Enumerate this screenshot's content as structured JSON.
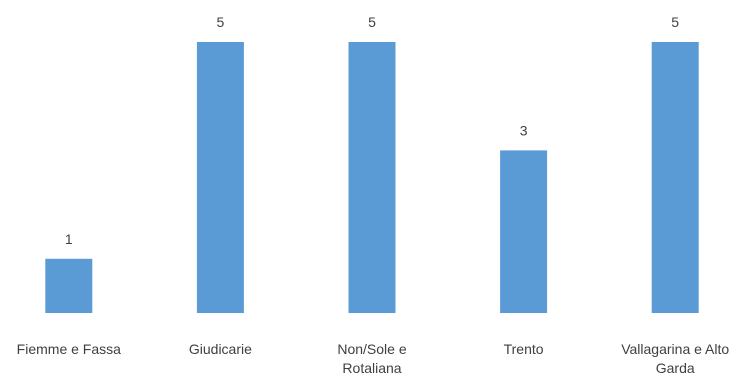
{
  "chart_data": {
    "type": "bar",
    "title": "",
    "xlabel": "",
    "ylabel": "",
    "categories": [
      "Fiemme e Fassa",
      "Giudicarie",
      "Non/Sole e Rotaliana",
      "Trento",
      "Vallagarina e Alto Garda"
    ],
    "values": [
      1,
      5,
      5,
      3,
      5
    ],
    "ylim": [
      0,
      5
    ],
    "grid": false,
    "legend": "none",
    "bar_color": "#5b9bd5",
    "label_color": "#404040",
    "data_labels": true
  }
}
